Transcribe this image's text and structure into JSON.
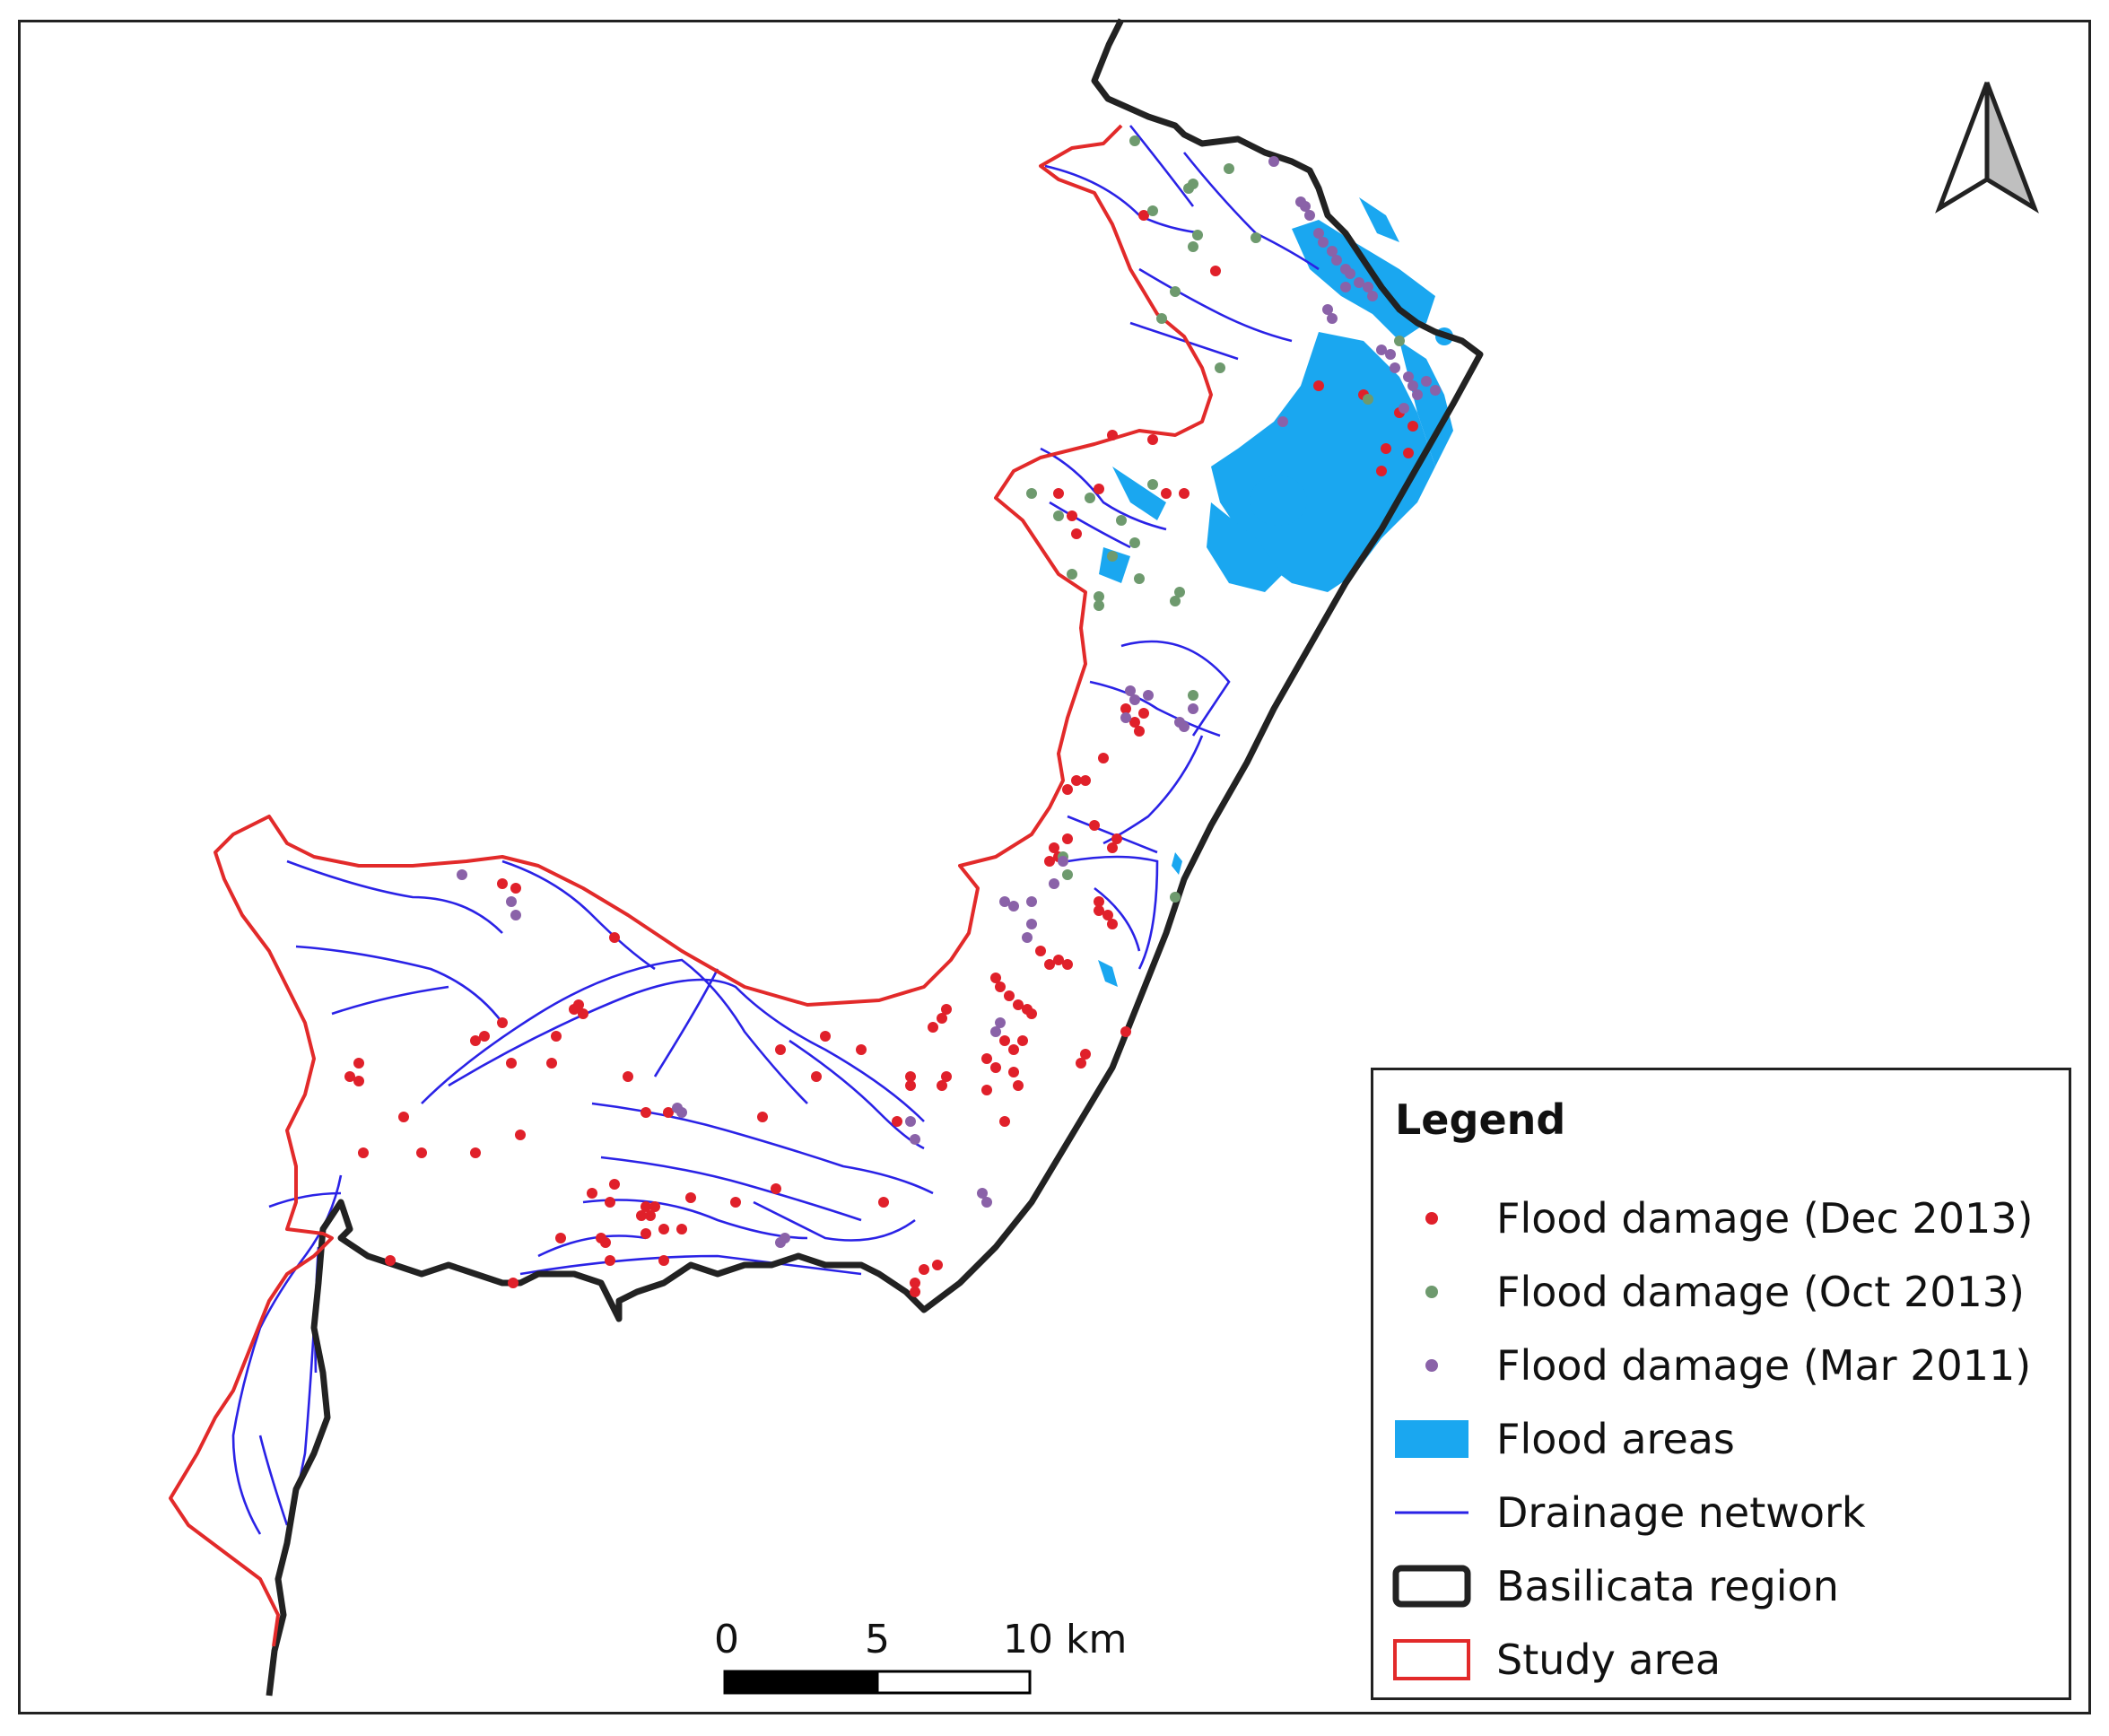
{
  "legend": {
    "title": "Legend",
    "items": [
      {
        "label": "Flood damage (Dec 2013)",
        "symbol": "dot",
        "color": "#e0202a"
      },
      {
        "label": "Flood damage (Oct 2013)",
        "symbol": "dot",
        "color": "#6e9a6e"
      },
      {
        "label": "Flood damage (Mar 2011)",
        "symbol": "dot",
        "color": "#8a62a8"
      },
      {
        "label": "Flood areas",
        "symbol": "fill",
        "color": "#1aa7f0"
      },
      {
        "label": "Drainage network",
        "symbol": "line",
        "color": "#2a22e6"
      },
      {
        "label": "Basilicata region",
        "symbol": "outline",
        "color": "#222222"
      },
      {
        "label": "Study area",
        "symbol": "outline",
        "color": "#e22a2a"
      }
    ]
  },
  "scale_bar": {
    "ticks": [
      "0",
      "5",
      "10 km"
    ]
  },
  "north_arrow": {
    "icon": "north-arrow-icon"
  }
}
